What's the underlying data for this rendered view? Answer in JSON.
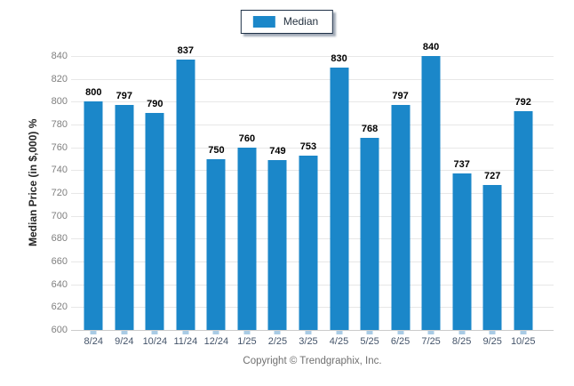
{
  "chart_data": {
    "type": "bar",
    "title": "",
    "categories": [
      "8/24",
      "9/24",
      "10/24",
      "11/24",
      "12/24",
      "1/25",
      "2/25",
      "3/25",
      "4/25",
      "5/25",
      "6/25",
      "7/25",
      "8/25",
      "9/25",
      "10/25"
    ],
    "values": [
      800,
      797,
      790,
      837,
      750,
      760,
      749,
      753,
      830,
      768,
      797,
      840,
      737,
      727,
      792
    ],
    "xlabel": "",
    "ylabel": "Median Price (in $,000) %",
    "ylim": [
      600,
      840
    ],
    "ytick_step": 20,
    "grid": "horizontal",
    "legend": [
      "Median"
    ],
    "legend_position": "top-center",
    "bar_value_labels": true
  },
  "legend": {
    "label": "Median"
  },
  "axis": {
    "ylabel": "Median Price (in $,000) %"
  },
  "footer": {
    "copyright": "Copyright © Trendgraphix, Inc."
  },
  "colors": {
    "bar": "#1b87c9",
    "gridline": "#e7e7e7",
    "baseline": "#cccccc",
    "axis_tick": "#a9cbe5",
    "ytick_text": "#7f7f7f",
    "xtick_text": "#44546a",
    "value_label_text": "#000000",
    "legend_border": "#1f3147"
  }
}
